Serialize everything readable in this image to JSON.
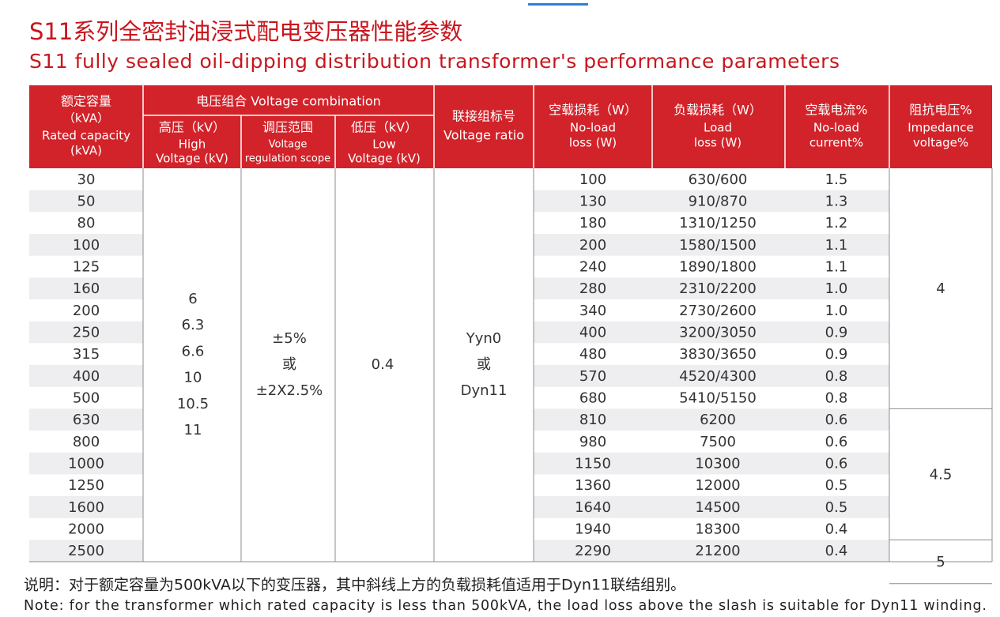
{
  "header": {
    "title": "S11系列全密封油浸式配电变压器性能参数",
    "subtitle": "S11 fully sealed oil-dipping distribution transformer's performance parameters"
  },
  "table": {
    "head": {
      "capacity": [
        "额定容量",
        "（kVA）",
        "Rated capacity",
        "(kVA)"
      ],
      "voltage_group": "电压组合 Voltage combination",
      "high_voltage": [
        "高压（kV）",
        "High",
        "Voltage (kV)"
      ],
      "regulation": [
        "调压范围",
        "Voltage",
        "regulation scope"
      ],
      "low_voltage": [
        "低压（kV）",
        "Low",
        "Voltage (kV)"
      ],
      "connection": [
        "联接组标号",
        "Voltage ratio"
      ],
      "no_load_loss": [
        "空载损耗（W）",
        "No-load",
        "loss (W)"
      ],
      "load_loss": [
        "负载损耗（W）",
        "Load",
        "loss (W)"
      ],
      "no_load_current": [
        "空载电流%",
        "No-load",
        "current%"
      ],
      "impedance": [
        "阻抗电压%",
        "Impedance",
        "voltage%"
      ]
    },
    "rows": [
      [
        "30",
        "100",
        "630/600",
        "1.5"
      ],
      [
        "50",
        "130",
        "910/870",
        "1.3"
      ],
      [
        "80",
        "180",
        "1310/1250",
        "1.2"
      ],
      [
        "100",
        "200",
        "1580/1500",
        "1.1"
      ],
      [
        "125",
        "240",
        "1890/1800",
        "1.1"
      ],
      [
        "160",
        "280",
        "2310/2200",
        "1.0"
      ],
      [
        "200",
        "340",
        "2730/2600",
        "1.0"
      ],
      [
        "250",
        "400",
        "3200/3050",
        "0.9"
      ],
      [
        "315",
        "480",
        "3830/3650",
        "0.9"
      ],
      [
        "400",
        "570",
        "4520/4300",
        "0.8"
      ],
      [
        "500",
        "680",
        "5410/5150",
        "0.8"
      ],
      [
        "630",
        "810",
        "6200",
        "0.6"
      ],
      [
        "800",
        "980",
        "7500",
        "0.6"
      ],
      [
        "1000",
        "1150",
        "10300",
        "0.6"
      ],
      [
        "1250",
        "1360",
        "12000",
        "0.5"
      ],
      [
        "1600",
        "1640",
        "14500",
        "0.5"
      ],
      [
        "2000",
        "1940",
        "18300",
        "0.4"
      ],
      [
        "2500",
        "2290",
        "21200",
        "0.4"
      ]
    ],
    "high_voltage": [
      "6",
      "6.3",
      "6.6",
      "10",
      "10.5",
      "11"
    ],
    "regulation": [
      "±5%",
      "或",
      "±2X2.5%"
    ],
    "low_voltage": "0.4",
    "connection": [
      "Yyn0",
      "或",
      "Dyn11"
    ],
    "impedance": [
      "4",
      "4.5",
      "5"
    ]
  },
  "notes": [
    "说明：对于额定容量为500kVA以下的变压器，其中斜线上方的负载损耗值适用于Dyn11联结组别。",
    "Note: for the transformer which rated capacity is less than 500kVA, the load loss above the slash is suitable for Dyn11 winding."
  ]
}
